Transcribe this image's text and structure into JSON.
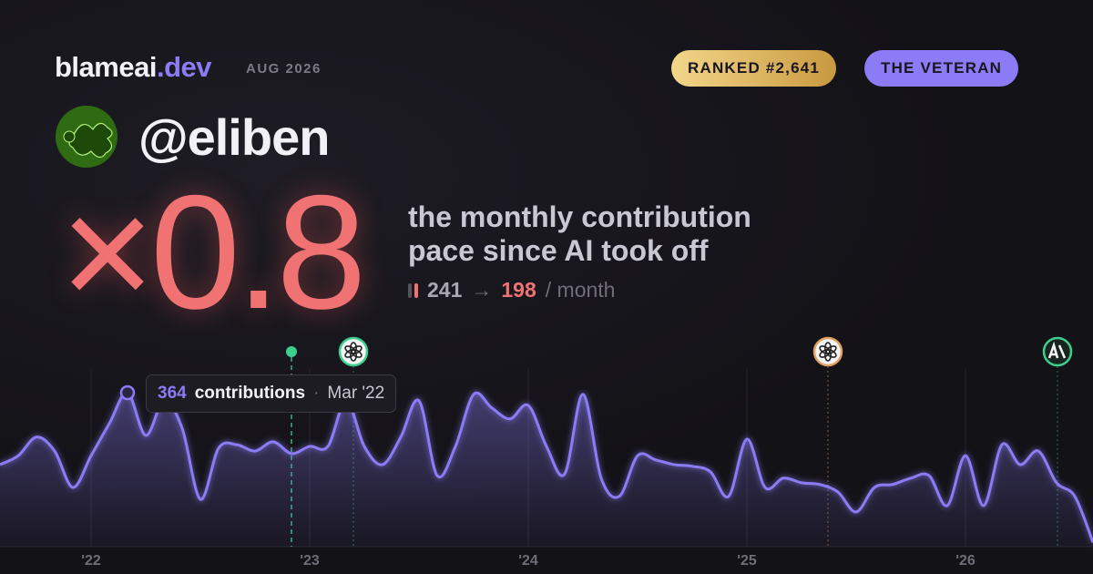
{
  "header": {
    "brand": "blameai",
    "brand_suffix": ".dev",
    "date": "AUG 2026",
    "rank_badge": "RANKED #2,641",
    "title_badge": "THE VETERAN"
  },
  "profile": {
    "handle": "@eliben"
  },
  "headline": {
    "multiplier": "×0.8",
    "caption_line_1": "the monthly contribution",
    "caption_line_2": "pace since AI took off",
    "before": "241",
    "arrow": "→",
    "after": "198",
    "unit": "/ month"
  },
  "chart_data": {
    "type": "area",
    "categories": [
      null,
      null,
      null,
      null,
      null,
      "'22",
      null,
      null,
      null,
      null,
      null,
      null,
      null,
      null,
      null,
      null,
      null,
      "'23",
      null,
      null,
      null,
      null,
      null,
      null,
      null,
      null,
      null,
      null,
      null,
      "'24",
      null,
      null,
      null,
      null,
      null,
      null,
      null,
      null,
      null,
      null,
      null,
      "'25",
      null,
      null,
      null,
      null,
      null,
      null,
      null,
      null,
      null,
      null,
      null,
      "'26",
      null,
      null,
      null,
      null,
      null,
      null,
      null
    ],
    "series": [
      {
        "name": "contributions",
        "color": "#8b7cf6",
        "values": [
          194,
          215,
          259,
          226,
          140,
          215,
          291,
          364,
          263,
          345,
          280,
          112,
          233,
          241,
          226,
          248,
          220,
          237,
          237,
          345,
          237,
          194,
          259,
          345,
          168,
          237,
          360,
          328,
          302,
          334,
          237,
          172,
          360,
          162,
          119,
          215,
          205,
          194,
          190,
          177,
          119,
          254,
          140,
          162,
          151,
          147,
          129,
          82,
          140,
          147,
          162,
          168,
          97,
          215,
          97,
          241,
          194,
          226,
          151,
          119,
          10
        ]
      }
    ],
    "ylim": [
      0,
      420
    ],
    "tooltip": {
      "index": 7,
      "label": "contributions",
      "separator": "·",
      "period": "Mar '22"
    },
    "markers": [
      {
        "x": 16,
        "color": "#3ecf8e",
        "marker": "dot"
      },
      {
        "x": 19.4,
        "color": "#3ecf8e",
        "marker": "knot"
      },
      {
        "x": 45.45,
        "color": "#e0a060",
        "marker": "knot"
      },
      {
        "x": 58.05,
        "color": "#3ecf8e",
        "marker": "glyph"
      }
    ]
  }
}
